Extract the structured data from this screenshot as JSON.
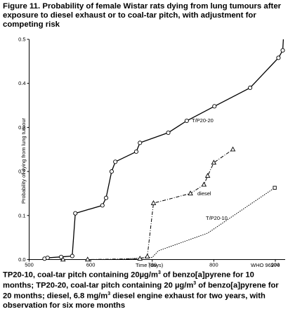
{
  "title": "Figure 11. Probability of female Wistar rats dying from lung tumours after exposure to diesel exhaust or to coal-tar pitch, with adjustment for competing risk",
  "caption": {
    "l1a": "TP20-10, coal-tar pitch containing 20",
    "l1b": "g/m",
    "l1c": " of benzo[a]pyrene for 10",
    "l2a": "months; TP20-20, coal-tar pitch containing 20 ",
    "l2b": "g/m",
    "l2c": " of benzo[a]pyrene for",
    "l3a": "20 months; diesel, 6.8 mg/m",
    "l3b": " diesel engine exhaust for two years, with",
    "l4": "observation for six more months",
    "mu": "µ",
    "sup3": "3"
  },
  "credit": "WHO 96274",
  "chart_data": {
    "type": "line",
    "xlabel": "Time (days)",
    "ylabel": "Probability of dying from lung tumour",
    "xlim": [
      500,
      915
    ],
    "ylim": [
      0,
      0.5
    ],
    "xticks": [
      "500",
      "600",
      "700",
      "800",
      "900"
    ],
    "yticks": [
      "0.0",
      "0.1",
      "0.2",
      "0.3",
      "0.4",
      "0.5"
    ],
    "grid": false,
    "series": [
      {
        "name": "T/P20-20",
        "marker": "circle",
        "line": "solid",
        "points": [
          [
            525,
            0.002
          ],
          [
            530,
            0.004
          ],
          [
            552,
            0.006
          ],
          [
            570,
            0.008
          ],
          [
            575,
            0.105
          ],
          [
            619,
            0.123
          ],
          [
            625,
            0.14
          ],
          [
            634,
            0.2
          ],
          [
            640,
            0.222
          ],
          [
            674,
            0.245
          ],
          [
            680,
            0.265
          ],
          [
            726,
            0.288
          ],
          [
            756,
            0.315
          ],
          [
            801,
            0.348
          ],
          [
            859,
            0.39
          ],
          [
            905,
            0.458
          ],
          [
            912,
            0.475
          ],
          [
            913,
            0.5
          ]
        ]
      },
      {
        "name": "diesel",
        "marker": "triangle",
        "line": "dashdot",
        "points": [
          [
            555,
            0.0
          ],
          [
            595,
            0.0
          ],
          [
            680,
            0.002
          ],
          [
            692,
            0.007
          ],
          [
            702,
            0.128
          ],
          [
            762,
            0.15
          ],
          [
            784,
            0.17
          ],
          [
            790,
            0.19
          ],
          [
            800,
            0.22
          ],
          [
            831,
            0.25
          ]
        ]
      },
      {
        "name": "T/P20-10",
        "marker": "square",
        "line": "dotted",
        "points": [
          [
            640,
            0.0
          ],
          [
            700,
            0.005
          ],
          [
            710,
            0.02
          ],
          [
            790,
            0.06
          ],
          [
            899,
            0.163
          ]
        ]
      }
    ]
  }
}
